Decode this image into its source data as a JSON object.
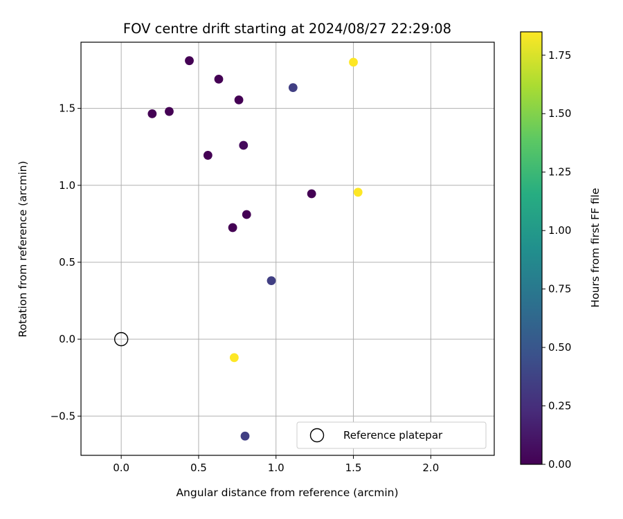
{
  "chart_data": {
    "type": "scatter",
    "title": "FOV centre drift starting at 2024/08/27 22:29:08",
    "xlabel": "Angular distance from reference (arcmin)",
    "ylabel": "Rotation from reference (arcmin)",
    "xlim": [
      -0.26,
      2.41
    ],
    "ylim": [
      -0.755,
      1.93
    ],
    "xticks": [
      0.0,
      0.5,
      1.0,
      1.5,
      2.0
    ],
    "xtick_labels": [
      "0.0",
      "0.5",
      "1.0",
      "1.5",
      "2.0"
    ],
    "yticks": [
      -0.5,
      0.0,
      0.5,
      1.0,
      1.5
    ],
    "ytick_labels": [
      "−0.5",
      "0.0",
      "0.5",
      "1.0",
      "1.5"
    ],
    "grid": true,
    "colormap": "viridis",
    "colorbar": {
      "label": "Hours from first FF file",
      "range": [
        0.0,
        1.85
      ],
      "ticks": [
        0.0,
        0.25,
        0.5,
        0.75,
        1.0,
        1.25,
        1.5,
        1.75
      ],
      "tick_labels": [
        "0.00",
        "0.25",
        "0.50",
        "0.75",
        "1.00",
        "1.25",
        "1.50",
        "1.75"
      ]
    },
    "points": [
      {
        "x": 0.2,
        "y": 1.465,
        "hours": 0.0
      },
      {
        "x": 0.31,
        "y": 1.48,
        "hours": 0.0
      },
      {
        "x": 0.44,
        "y": 1.81,
        "hours": 0.0
      },
      {
        "x": 0.63,
        "y": 1.69,
        "hours": 0.0
      },
      {
        "x": 0.76,
        "y": 1.555,
        "hours": 0.0
      },
      {
        "x": 0.56,
        "y": 1.195,
        "hours": 0.0
      },
      {
        "x": 0.79,
        "y": 1.26,
        "hours": 0.05
      },
      {
        "x": 0.81,
        "y": 0.81,
        "hours": 0.0
      },
      {
        "x": 0.72,
        "y": 0.725,
        "hours": 0.0
      },
      {
        "x": 1.23,
        "y": 0.945,
        "hours": 0.0
      },
      {
        "x": 1.11,
        "y": 1.635,
        "hours": 0.35
      },
      {
        "x": 0.97,
        "y": 0.38,
        "hours": 0.35
      },
      {
        "x": 0.8,
        "y": -0.63,
        "hours": 0.35
      },
      {
        "x": 1.5,
        "y": 1.8,
        "hours": 1.85
      },
      {
        "x": 1.53,
        "y": 0.955,
        "hours": 1.85
      },
      {
        "x": 0.73,
        "y": -0.12,
        "hours": 1.85
      }
    ],
    "reference": {
      "x": 0.0,
      "y": 0.0
    },
    "legend": {
      "label": "Reference platepar",
      "location": "lower-right"
    }
  }
}
